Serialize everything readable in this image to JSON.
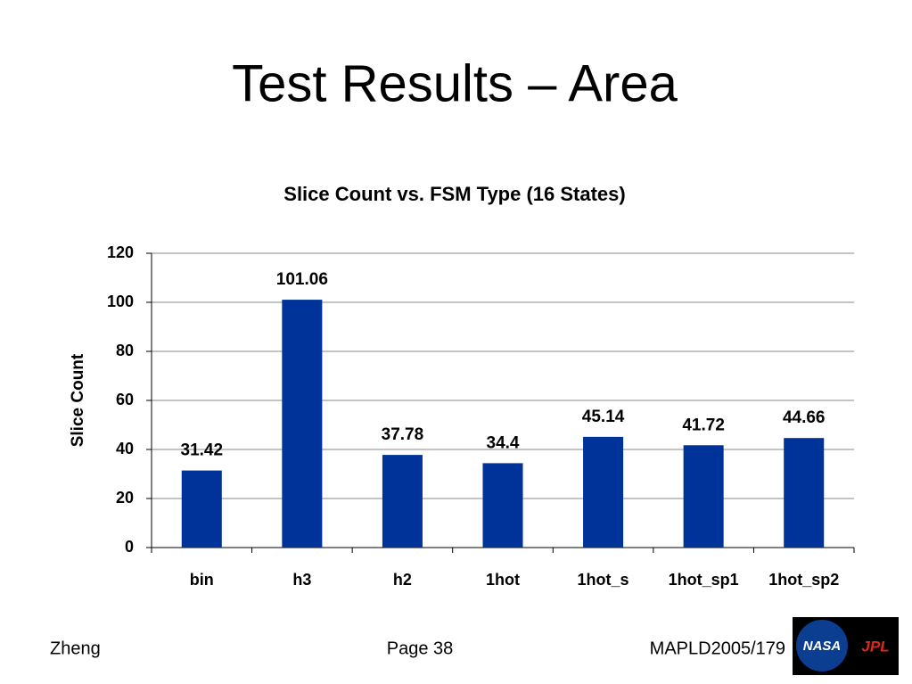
{
  "slide": {
    "title": "Test Results – Area",
    "footer_left": "Zheng",
    "footer_center": "Page 38",
    "footer_right": "MAPLD2005/179",
    "logo_left": "NASA",
    "logo_right": "JPL"
  },
  "chart_data": {
    "type": "bar",
    "title": "Slice Count vs. FSM Type (16 States)",
    "y_label": "Slice Count",
    "categories": [
      "bin",
      "h3",
      "h2",
      "1hot",
      "1hot_s",
      "1hot_sp1",
      "1hot_sp2"
    ],
    "values": [
      31.42,
      101.06,
      37.78,
      34.4,
      45.14,
      41.72,
      44.66
    ],
    "color": "#00339a",
    "ylim": [
      0,
      120
    ],
    "yticks": [
      0,
      20,
      40,
      60,
      80,
      100,
      120
    ],
    "grid": true
  }
}
